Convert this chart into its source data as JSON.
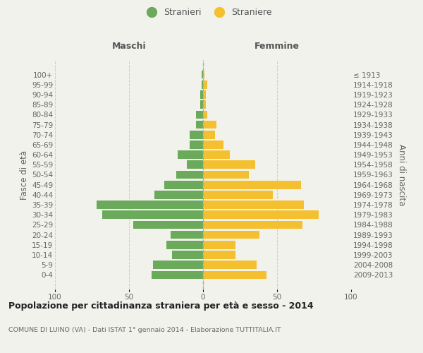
{
  "age_groups": [
    "100+",
    "95-99",
    "90-94",
    "85-89",
    "80-84",
    "75-79",
    "70-74",
    "65-69",
    "60-64",
    "55-59",
    "50-54",
    "45-49",
    "40-44",
    "35-39",
    "30-34",
    "25-29",
    "20-24",
    "15-19",
    "10-14",
    "5-9",
    "0-4"
  ],
  "birth_years": [
    "≤ 1913",
    "1914-1918",
    "1919-1923",
    "1924-1928",
    "1929-1933",
    "1934-1938",
    "1939-1943",
    "1944-1948",
    "1949-1953",
    "1954-1958",
    "1959-1963",
    "1964-1968",
    "1969-1973",
    "1974-1978",
    "1979-1983",
    "1984-1988",
    "1989-1993",
    "1994-1998",
    "1999-2003",
    "2004-2008",
    "2009-2013"
  ],
  "maschi": [
    1,
    1,
    2,
    2,
    5,
    5,
    9,
    9,
    17,
    11,
    18,
    26,
    33,
    72,
    68,
    47,
    22,
    25,
    21,
    34,
    35
  ],
  "femmine": [
    1,
    3,
    2,
    2,
    3,
    9,
    8,
    14,
    18,
    35,
    31,
    66,
    47,
    68,
    78,
    67,
    38,
    22,
    22,
    36,
    43
  ],
  "color_maschi": "#6aaa5a",
  "color_femmine": "#f5c030",
  "background_color": "#f2f2ec",
  "grid_color": "#cccccc",
  "title": "Popolazione per cittadinanza straniera per età e sesso - 2014",
  "subtitle": "COMUNE DI LUINO (VA) - Dati ISTAT 1° gennaio 2014 - Elaborazione TUTTITALIA.IT",
  "header_left": "Maschi",
  "header_right": "Femmine",
  "ylabel_left": "Fasce di età",
  "ylabel_right": "Anni di nascita",
  "legend_maschi": "Stranieri",
  "legend_femmine": "Straniere",
  "xlim": 100
}
